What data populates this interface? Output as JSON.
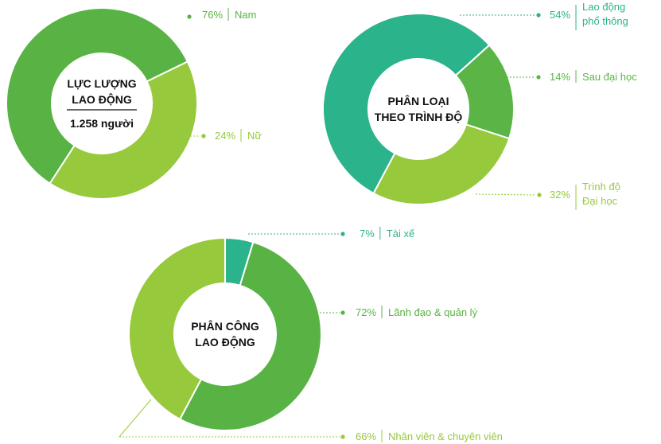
{
  "colors": {
    "dark_green": "#58b344",
    "light_green": "#97c93c",
    "teal": "#2bb38c",
    "mid_green": "#5ab546"
  },
  "chart_data": [
    {
      "type": "pie",
      "center_lines": [
        "LỰC LƯỢNG",
        "LAO ĐỘNG"
      ],
      "center_sub": "1.258 người",
      "slices": [
        {
          "pct_label": "76%",
          "label": [
            "Nam"
          ],
          "value": 76,
          "color": "#58b344"
        },
        {
          "pct_label": "24%",
          "label": [
            "Nữ"
          ],
          "value": 24,
          "color": "#97c93c"
        }
      ]
    },
    {
      "type": "pie",
      "center_lines": [
        "PHÂN LOẠI",
        "THEO TRÌNH ĐỘ"
      ],
      "center_sub": "",
      "slices": [
        {
          "pct_label": "54%",
          "label": [
            "Lao động",
            "phổ thông"
          ],
          "value": 54,
          "color": "#2bb38c"
        },
        {
          "pct_label": "14%",
          "label": [
            "Sau đại học"
          ],
          "value": 14,
          "color": "#5ab546"
        },
        {
          "pct_label": "32%",
          "label": [
            "Trình độ",
            "Đại học"
          ],
          "value": 32,
          "color": "#97c93c"
        }
      ]
    },
    {
      "type": "pie",
      "center_lines": [
        "PHÂN CÔNG",
        "LAO ĐỘNG"
      ],
      "center_sub": "",
      "slices": [
        {
          "pct_label": "7%",
          "label": [
            "Tài xế"
          ],
          "value": 7,
          "color": "#2bb38c"
        },
        {
          "pct_label": "72%",
          "label": [
            "Lãnh đạo & quản lý"
          ],
          "value": 72,
          "color": "#58b344"
        },
        {
          "pct_label": "66%",
          "label": [
            "Nhân viên & chuyên viên"
          ],
          "value": 66,
          "color": "#97c93c"
        }
      ]
    }
  ]
}
